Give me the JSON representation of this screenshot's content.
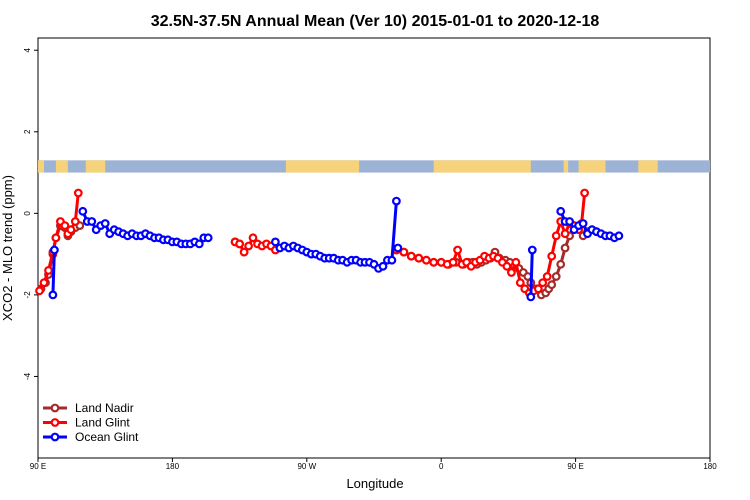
{
  "chart_data": {
    "type": "line",
    "title": "32.5N-37.5N Annual Mean (Ver 10)   2015-01-01 to 2020-12-18",
    "xlabel": "Longitude",
    "ylabel": "XCO2 - MLO trend (ppm)",
    "xlim": [
      90,
      540
    ],
    "ylim": [
      -6,
      4.3
    ],
    "x_ticks": [
      {
        "value": 90,
        "label": "90 E"
      },
      {
        "value": 180,
        "label": "180"
      },
      {
        "value": 270,
        "label": "90 W"
      },
      {
        "value": 360,
        "label": "0"
      },
      {
        "value": 450,
        "label": "90 E"
      },
      {
        "value": 540,
        "label": "180"
      }
    ],
    "y_ticks": [
      {
        "value": -4,
        "label": "-4"
      },
      {
        "value": -2,
        "label": "-2"
      },
      {
        "value": 0,
        "label": "0"
      },
      {
        "value": 2,
        "label": "2"
      },
      {
        "value": 4,
        "label": "4"
      }
    ],
    "land_ocean_band": {
      "y_range": [
        1.0,
        1.3
      ],
      "ocean_color": "#9db3d6",
      "land_color": "#f6d37a",
      "land_segments": [
        [
          90,
          94
        ],
        [
          102,
          110
        ],
        [
          122,
          135
        ],
        [
          256,
          305
        ],
        [
          355,
          420
        ],
        [
          442,
          445
        ],
        [
          452,
          470
        ],
        [
          492,
          505
        ]
      ]
    },
    "legend": {
      "placement": "bottom-left",
      "entries": [
        {
          "label": "Land Nadir",
          "color": "#a52a2a"
        },
        {
          "label": "Land Glint",
          "color": "#ff0000"
        },
        {
          "label": "Ocean Glint",
          "color": "#0000ff"
        }
      ]
    },
    "series": [
      {
        "name": "Land Nadir",
        "color": "#a52a2a",
        "segments": [
          [
            [
              92,
              -1.85
            ],
            [
              95,
              -1.7
            ],
            [
              97,
              -1.5
            ],
            [
              100,
              -1.0
            ],
            [
              102,
              -0.6
            ],
            [
              105,
              -0.3
            ],
            [
              108,
              -0.35
            ],
            [
              110,
              -0.55
            ],
            [
              112,
              -0.45
            ],
            [
              115,
              -0.35
            ],
            [
              118,
              -0.3
            ]
          ],
          [
            [
              222,
              -0.7
            ],
            [
              225,
              -0.75
            ]
          ],
          [
            [
              330,
              -0.9
            ],
            [
              335,
              -0.95
            ],
            [
              340,
              -1.05
            ],
            [
              345,
              -1.1
            ],
            [
              350,
              -1.15
            ],
            [
              355,
              -1.2
            ],
            [
              360,
              -1.2
            ],
            [
              365,
              -1.25
            ],
            [
              370,
              -1.2
            ]
          ],
          [
            [
              375,
              -1.25
            ],
            [
              378,
              -1.2
            ],
            [
              381,
              -1.2
            ],
            [
              384,
              -1.25
            ],
            [
              387,
              -1.2
            ],
            [
              390,
              -1.15
            ],
            [
              393,
              -1.1
            ],
            [
              396,
              -0.95
            ],
            [
              399,
              -1.1
            ],
            [
              403,
              -1.15
            ],
            [
              406,
              -1.2
            ],
            [
              409,
              -1.3
            ],
            [
              412,
              -1.35
            ],
            [
              415,
              -1.45
            ],
            [
              418,
              -1.55
            ]
          ],
          [
            [
              420,
              -1.7
            ],
            [
              424,
              -1.85
            ],
            [
              427,
              -2.0
            ],
            [
              430,
              -1.95
            ],
            [
              432,
              -1.85
            ],
            [
              434,
              -1.75
            ],
            [
              437,
              -1.55
            ],
            [
              440,
              -1.25
            ],
            [
              443,
              -0.85
            ],
            [
              446,
              -0.55
            ],
            [
              449,
              -0.3
            ],
            [
              452,
              -0.35
            ],
            [
              455,
              -0.55
            ],
            [
              458,
              -0.45
            ],
            [
              461,
              -0.4
            ],
            [
              464,
              -0.45
            ]
          ]
        ]
      },
      {
        "name": "Land Glint",
        "color": "#ff0000",
        "segments": [
          [
            [
              91,
              -1.9
            ],
            [
              94,
              -1.7
            ],
            [
              97,
              -1.4
            ],
            [
              100,
              -0.95
            ],
            [
              102,
              -0.6
            ],
            [
              105,
              -0.2
            ],
            [
              108,
              -0.3
            ],
            [
              110,
              -0.5
            ],
            [
              112,
              -0.4
            ],
            [
              115,
              -0.2
            ],
            [
              117,
              0.5
            ]
          ],
          [
            [
              222,
              -0.7
            ],
            [
              225,
              -0.75
            ],
            [
              228,
              -0.95
            ],
            [
              231,
              -0.8
            ],
            [
              234,
              -0.6
            ],
            [
              237,
              -0.75
            ],
            [
              240,
              -0.8
            ],
            [
              243,
              -0.75
            ],
            [
              246,
              -0.8
            ],
            [
              249,
              -0.9
            ]
          ],
          [
            [
              330,
              -0.9
            ],
            [
              335,
              -0.95
            ],
            [
              340,
              -1.05
            ],
            [
              345,
              -1.1
            ],
            [
              350,
              -1.15
            ],
            [
              355,
              -1.2
            ],
            [
              360,
              -1.2
            ],
            [
              364,
              -1.25
            ],
            [
              368,
              -1.2
            ],
            [
              371,
              -0.9
            ],
            [
              374,
              -1.25
            ],
            [
              377,
              -1.2
            ],
            [
              380,
              -1.3
            ],
            [
              383,
              -1.2
            ],
            [
              386,
              -1.15
            ],
            [
              389,
              -1.05
            ],
            [
              392,
              -1.1
            ],
            [
              395,
              -1.05
            ],
            [
              398,
              -1.1
            ],
            [
              401,
              -1.2
            ],
            [
              404,
              -1.3
            ],
            [
              407,
              -1.45
            ],
            [
              410,
              -1.2
            ],
            [
              413,
              -1.7
            ],
            [
              416,
              -1.85
            ],
            [
              419,
              -1.95
            ],
            [
              422,
              -1.9
            ],
            [
              425,
              -1.85
            ],
            [
              428,
              -1.7
            ],
            [
              431,
              -1.55
            ],
            [
              434,
              -1.05
            ],
            [
              437,
              -0.55
            ],
            [
              440,
              -0.2
            ],
            [
              443,
              -0.5
            ],
            [
              446,
              -0.25
            ],
            [
              449,
              -0.3
            ],
            [
              452,
              -0.4
            ],
            [
              454,
              -0.25
            ],
            [
              456,
              0.5
            ]
          ]
        ]
      },
      {
        "name": "Ocean Glint",
        "color": "#0000ff",
        "segments": [
          [
            [
              100,
              -2.0
            ],
            [
              101,
              -0.9
            ]
          ],
          [
            [
              120,
              0.05
            ],
            [
              123,
              -0.2
            ],
            [
              126,
              -0.2
            ],
            [
              129,
              -0.4
            ],
            [
              132,
              -0.3
            ],
            [
              135,
              -0.25
            ],
            [
              138,
              -0.5
            ],
            [
              141,
              -0.4
            ],
            [
              144,
              -0.45
            ],
            [
              147,
              -0.5
            ],
            [
              150,
              -0.55
            ],
            [
              153,
              -0.5
            ],
            [
              156,
              -0.55
            ],
            [
              159,
              -0.55
            ],
            [
              162,
              -0.5
            ],
            [
              165,
              -0.55
            ],
            [
              168,
              -0.6
            ],
            [
              171,
              -0.6
            ],
            [
              174,
              -0.65
            ],
            [
              177,
              -0.65
            ],
            [
              180,
              -0.7
            ],
            [
              183,
              -0.7
            ],
            [
              186,
              -0.75
            ],
            [
              189,
              -0.75
            ],
            [
              192,
              -0.75
            ],
            [
              195,
              -0.7
            ],
            [
              198,
              -0.75
            ],
            [
              201,
              -0.6
            ],
            [
              204,
              -0.6
            ]
          ],
          [
            [
              249,
              -0.7
            ],
            [
              252,
              -0.85
            ],
            [
              255,
              -0.8
            ],
            [
              258,
              -0.85
            ],
            [
              261,
              -0.8
            ],
            [
              264,
              -0.85
            ],
            [
              267,
              -0.9
            ],
            [
              270,
              -0.95
            ],
            [
              273,
              -1.0
            ],
            [
              276,
              -1.0
            ],
            [
              279,
              -1.05
            ],
            [
              282,
              -1.1
            ],
            [
              285,
              -1.1
            ],
            [
              288,
              -1.1
            ],
            [
              291,
              -1.15
            ],
            [
              294,
              -1.15
            ],
            [
              297,
              -1.2
            ],
            [
              300,
              -1.15
            ],
            [
              303,
              -1.15
            ],
            [
              306,
              -1.2
            ],
            [
              309,
              -1.2
            ],
            [
              312,
              -1.2
            ],
            [
              315,
              -1.25
            ],
            [
              318,
              -1.35
            ],
            [
              321,
              -1.3
            ],
            [
              324,
              -1.15
            ],
            [
              327,
              -1.15
            ],
            [
              330,
              0.3
            ]
          ],
          [
            [
              331,
              -0.85
            ]
          ],
          [
            [
              420,
              -2.05
            ],
            [
              421,
              -0.9
            ]
          ],
          [
            [
              440,
              0.05
            ],
            [
              443,
              -0.2
            ],
            [
              446,
              -0.2
            ],
            [
              449,
              -0.4
            ],
            [
              452,
              -0.3
            ],
            [
              455,
              -0.25
            ],
            [
              458,
              -0.5
            ],
            [
              461,
              -0.4
            ],
            [
              464,
              -0.45
            ],
            [
              467,
              -0.5
            ],
            [
              470,
              -0.55
            ],
            [
              473,
              -0.55
            ],
            [
              476,
              -0.6
            ],
            [
              479,
              -0.55
            ]
          ]
        ]
      }
    ]
  }
}
